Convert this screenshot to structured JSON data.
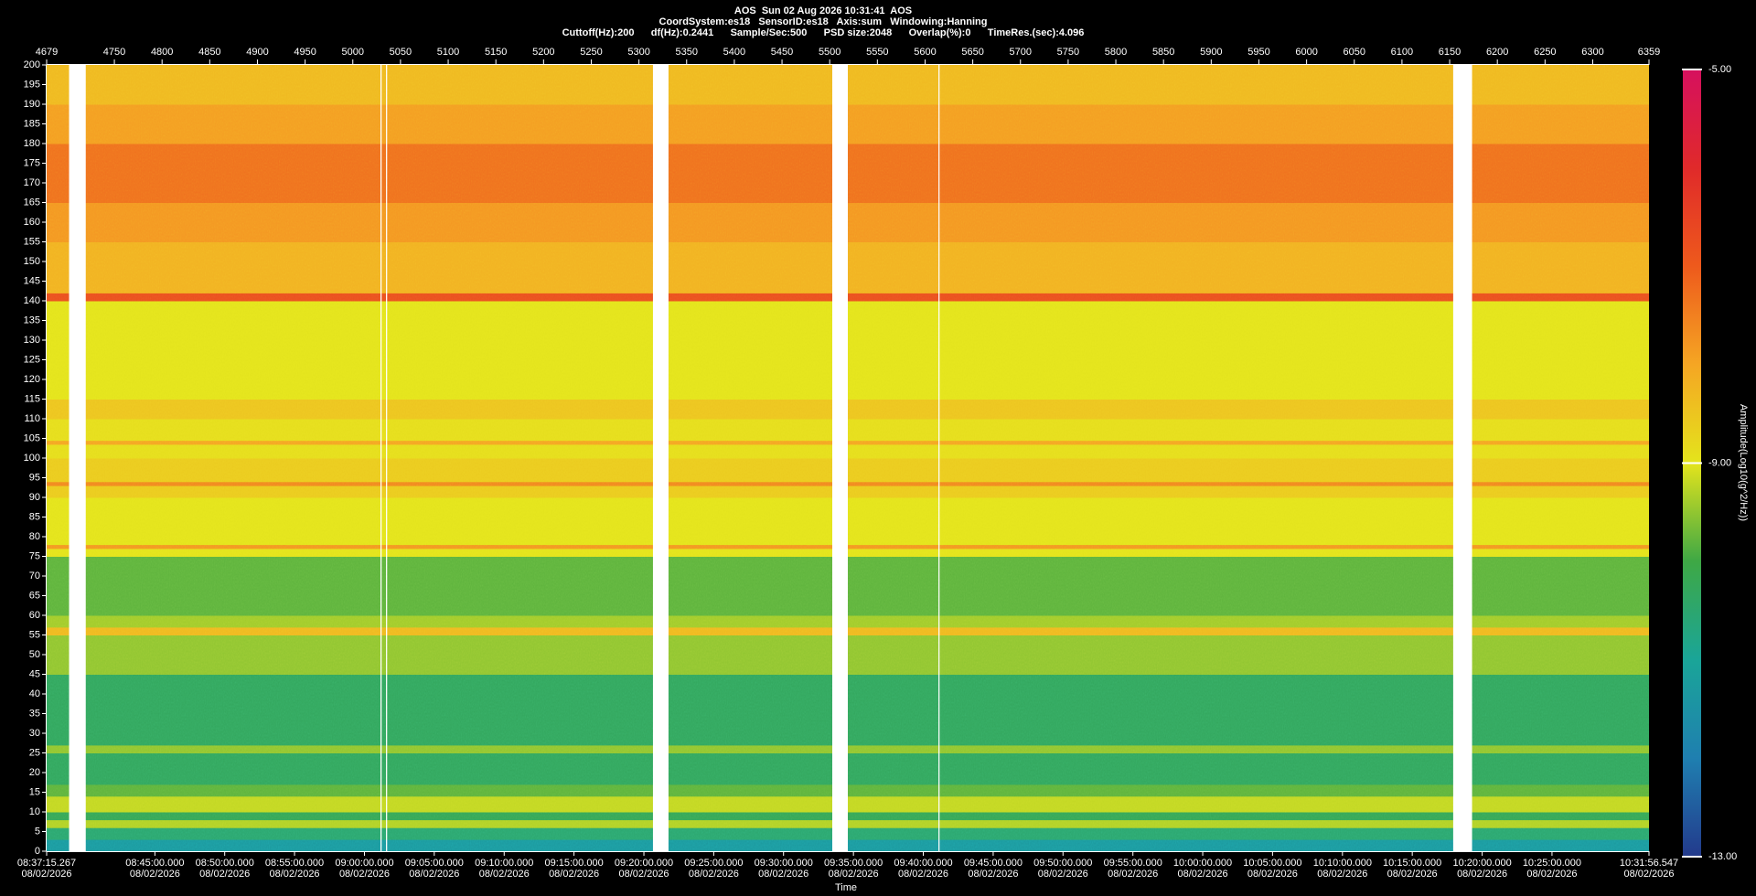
{
  "chart_data": {
    "type": "spectrogram",
    "title": "AOS  Sun 02 Aug 2026 10:31:41  AOS",
    "subtitle": "CoordSystem:es18   SensorID:es18   Axis:sum   Windowing:Hanning",
    "settings_line": "Cuttoff(Hz):200      df(Hz):0.2441      Sample/Sec:500      PSD size:2048      Overlap(%):0      TimeRes.(sec):4.096",
    "x_label": "Time",
    "colorbar_label": "Amplitude(Log10(g^2/Hz))",
    "xlim": [
      4679,
      6359
    ],
    "top_xticks": [
      4679,
      4750,
      4800,
      4850,
      4900,
      4950,
      5000,
      5050,
      5100,
      5150,
      5200,
      5250,
      5300,
      5350,
      5400,
      5450,
      5500,
      5550,
      5600,
      5650,
      5700,
      5750,
      5800,
      5850,
      5900,
      5950,
      6000,
      6050,
      6100,
      6150,
      6200,
      6250,
      6300,
      6359
    ],
    "xticks": [
      {
        "value": 4679,
        "label": "08:37:15.267"
      },
      {
        "value": 4792.5,
        "label": "08:45:00.000"
      },
      {
        "value": 4865.7,
        "label": "08:50:00.000"
      },
      {
        "value": 4938.9,
        "label": "08:55:00.000"
      },
      {
        "value": 5012.2,
        "label": "09:00:00.000"
      },
      {
        "value": 5085.4,
        "label": "09:05:00.000"
      },
      {
        "value": 5158.7,
        "label": "09:10:00.000"
      },
      {
        "value": 5231.9,
        "label": "09:15:00.000"
      },
      {
        "value": 5305.2,
        "label": "09:20:00.000"
      },
      {
        "value": 5378.4,
        "label": "09:25:00.000"
      },
      {
        "value": 5451.6,
        "label": "09:30:00.000"
      },
      {
        "value": 5524.9,
        "label": "09:35:00.000"
      },
      {
        "value": 5598.1,
        "label": "09:40:00.000"
      },
      {
        "value": 5671.4,
        "label": "09:45:00.000"
      },
      {
        "value": 5744.6,
        "label": "09:50:00.000"
      },
      {
        "value": 5817.9,
        "label": "09:55:00.000"
      },
      {
        "value": 5891.1,
        "label": "10:00:00.000"
      },
      {
        "value": 5964.3,
        "label": "10:05:00.000"
      },
      {
        "value": 6037.6,
        "label": "10:10:00.000"
      },
      {
        "value": 6110.8,
        "label": "10:15:00.000"
      },
      {
        "value": 6184.1,
        "label": "10:20:00.000"
      },
      {
        "value": 6257.3,
        "label": "10:25:00.000"
      },
      {
        "value": 6359,
        "label": "10:31:56.547"
      }
    ],
    "xtick_dates": [
      "08/02/2026",
      "08/02/2026",
      "08/02/2026",
      "08/02/2026",
      "08/02/2026",
      "08/02/2026",
      "08/02/2026",
      "08/02/2026",
      "08/02/2026",
      "08/02/2026",
      "08/02/2026",
      "08/02/2026",
      "08/02/2026",
      "08/02/2026",
      "08/02/2026",
      "08/02/2026",
      "08/02/2026",
      "08/02/2026",
      "08/02/2026",
      "08/02/2026",
      "08/02/2026",
      "08/02/2026",
      "08/02/2026"
    ],
    "ylim": [
      0,
      200
    ],
    "yticks": [
      0,
      5,
      10,
      15,
      20,
      25,
      30,
      35,
      40,
      45,
      50,
      55,
      60,
      65,
      70,
      75,
      80,
      85,
      90,
      95,
      100,
      105,
      110,
      115,
      120,
      125,
      130,
      135,
      140,
      145,
      150,
      155,
      160,
      165,
      170,
      175,
      180,
      185,
      190,
      195,
      200
    ],
    "freq_edges": [
      0,
      3,
      6,
      8,
      10,
      14,
      17,
      25,
      27,
      45,
      55,
      57,
      60,
      75,
      77,
      78,
      90,
      93,
      94,
      100,
      103.5,
      104.5,
      110,
      115,
      140,
      142,
      155,
      165,
      180,
      190,
      200
    ],
    "amplitudes": [
      -11.3,
      -10.5,
      -9.3,
      -10.2,
      -9.2,
      -9.8,
      -10.3,
      -9.5,
      -10.3,
      -9.5,
      -8.3,
      -9.4,
      -9.8,
      -9.0,
      -7.8,
      -9.0,
      -8.6,
      -7.6,
      -8.6,
      -8.9,
      -8.0,
      -8.9,
      -8.5,
      -9.0,
      -6.8,
      -8.2,
      -7.8,
      -7.3,
      -7.9,
      -8.3
    ],
    "gaps": [
      [
        4702.5,
        4720
      ],
      [
        5029.0,
        5030.2
      ],
      [
        5034.8,
        5036.0
      ],
      [
        5314.7,
        5331
      ],
      [
        5502.7,
        5519
      ],
      [
        5614.0,
        5615.2
      ],
      [
        6153.7,
        6173.5
      ]
    ],
    "clim": [
      -13,
      -5
    ],
    "colorbar_ticks": [
      {
        "value": -5,
        "label": "-5.00"
      },
      {
        "value": -9,
        "label": "-9.00"
      },
      {
        "value": -13,
        "label": "-13.00"
      }
    ],
    "colormap": [
      "#233a8c",
      "#1f7fb0",
      "#1aa598",
      "#3ea845",
      "#e4e41c",
      "#f5a623",
      "#ee5a1c",
      "#e02a2a",
      "#d6105e"
    ],
    "gap_color": "#ffffff"
  }
}
